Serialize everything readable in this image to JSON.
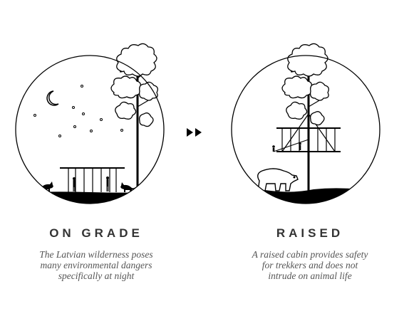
{
  "panels": [
    {
      "heading": "ON GRADE",
      "caption_lines": [
        "The Latvian wilderness poses",
        "many environmental dangers",
        "specifically at night"
      ]
    },
    {
      "heading": "RAISED",
      "caption_lines": [
        "A raised cabin provides safety",
        "for trekkers and does not",
        "intrude on animal life"
      ]
    }
  ],
  "icons": {
    "transition": "double-right-arrow-icon",
    "moon": "crescent-moon-icon",
    "tree": "tree-icon",
    "bear": "bear-icon",
    "fox": "fox-icon"
  }
}
